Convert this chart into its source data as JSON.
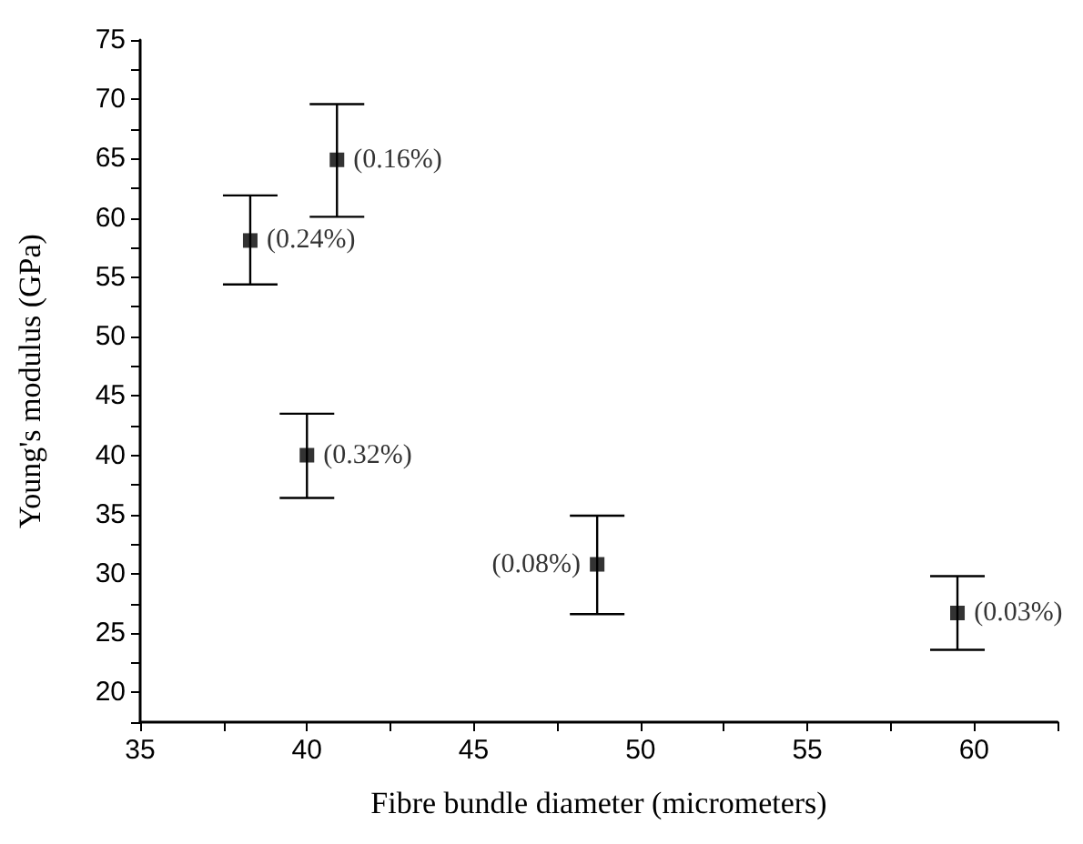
{
  "chart_data": {
    "type": "scatter",
    "xlabel": "Fibre bundle diameter (micrometers)",
    "ylabel": "Young's modulus (GPa)",
    "x": [
      38.3,
      40.9,
      40.0,
      48.7,
      59.5
    ],
    "values": [
      58.1,
      64.9,
      40.0,
      30.8,
      26.7
    ],
    "errors": [
      [
        54.4,
        61.9
      ],
      [
        60.1,
        69.6
      ],
      [
        36.4,
        43.5
      ],
      [
        26.6,
        34.9
      ],
      [
        23.6,
        29.8
      ]
    ],
    "color": "#000000",
    "marker": "square",
    "grid": false,
    "xlim": [
      35,
      62.5
    ],
    "xticks": [
      35,
      40,
      45,
      50,
      55,
      60
    ],
    "ylim": [
      17.5,
      75
    ],
    "yticks": [
      20,
      25,
      30,
      35,
      40,
      45,
      50,
      55,
      60,
      65,
      70,
      75
    ],
    "annotations": [
      {
        "text": "(0.24%)",
        "x": 38.3,
        "y": 58.1
      },
      {
        "text": "(0.16%)",
        "x": 40.9,
        "y": 64.9
      },
      {
        "text": "(0.32%)",
        "x": 40.0,
        "y": 40.0
      },
      {
        "text": "(0.08%)",
        "x": 48.7,
        "y": 30.8
      },
      {
        "text": "(0.03%)",
        "x": 59.5,
        "y": 26.7
      }
    ]
  }
}
